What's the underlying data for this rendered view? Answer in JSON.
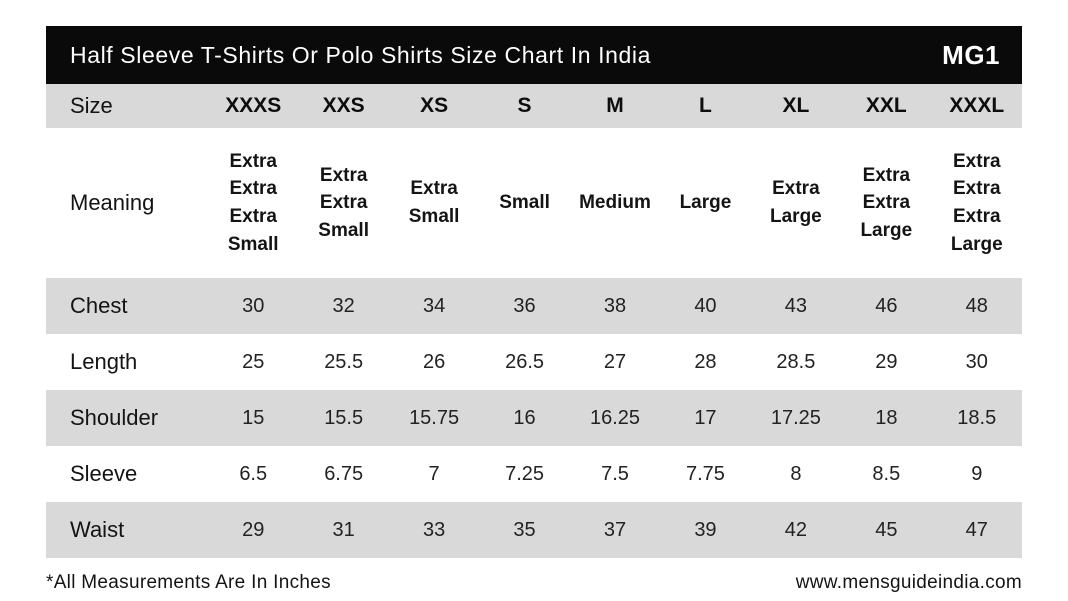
{
  "header": {
    "title": "Half Sleeve T-Shirts Or Polo Shirts Size Chart In India",
    "logo": "MG1"
  },
  "table": {
    "size_label": "Size",
    "sizes": [
      "XXXS",
      "XXS",
      "XS",
      "S",
      "M",
      "L",
      "XL",
      "XXL",
      "XXXL"
    ],
    "rows": [
      {
        "label": "Meaning",
        "values": [
          "Extra Extra Extra Small",
          "Extra Extra Small",
          "Extra Small",
          "Small",
          "Medium",
          "Large",
          "Extra Large",
          "Extra Extra Large",
          "Extra Extra Extra Large"
        ]
      },
      {
        "label": "Chest",
        "values": [
          "30",
          "32",
          "34",
          "36",
          "38",
          "40",
          "43",
          "46",
          "48"
        ]
      },
      {
        "label": "Length",
        "values": [
          "25",
          "25.5",
          "26",
          "26.5",
          "27",
          "28",
          "28.5",
          "29",
          "30"
        ]
      },
      {
        "label": "Shoulder",
        "values": [
          "15",
          "15.5",
          "15.75",
          "16",
          "16.25",
          "17",
          "17.25",
          "18",
          "18.5"
        ]
      },
      {
        "label": "Sleeve",
        "values": [
          "6.5",
          "6.75",
          "7",
          "7.25",
          "7.5",
          "7.75",
          "8",
          "8.5",
          "9"
        ]
      },
      {
        "label": "Waist",
        "values": [
          "29",
          "31",
          "33",
          "35",
          "37",
          "39",
          "42",
          "45",
          "47"
        ]
      }
    ]
  },
  "footer": {
    "note": "*All Measurements Are In Inches",
    "website": "www.mensguideindia.com"
  },
  "colors": {
    "header_bg": "#0a0a0a",
    "header_text": "#ffffff",
    "row_alt_bg": "#d9d9d9",
    "text": "#1f1f1f"
  },
  "chart_data": {
    "type": "table",
    "title": "Half Sleeve T-Shirts Or Polo Shirts Size Chart In India",
    "columns": [
      "Size",
      "XXXS",
      "XXS",
      "XS",
      "S",
      "M",
      "L",
      "XL",
      "XXL",
      "XXXL"
    ],
    "rows": [
      [
        "Meaning",
        "Extra Extra Extra Small",
        "Extra Extra Small",
        "Extra Small",
        "Small",
        "Medium",
        "Large",
        "Extra Large",
        "Extra Extra Large",
        "Extra Extra Extra Large"
      ],
      [
        "Chest",
        30,
        32,
        34,
        36,
        38,
        40,
        43,
        46,
        48
      ],
      [
        "Length",
        25,
        25.5,
        26,
        26.5,
        27,
        28,
        28.5,
        29,
        30
      ],
      [
        "Shoulder",
        15,
        15.5,
        15.75,
        16,
        16.25,
        17,
        17.25,
        18,
        18.5
      ],
      [
        "Sleeve",
        6.5,
        6.75,
        7,
        7.25,
        7.5,
        7.75,
        8,
        8.5,
        9
      ],
      [
        "Waist",
        29,
        31,
        33,
        35,
        37,
        39,
        42,
        45,
        47
      ]
    ],
    "units": "inches",
    "note": "*All Measurements Are In Inches",
    "source": "www.mensguideindia.com"
  }
}
